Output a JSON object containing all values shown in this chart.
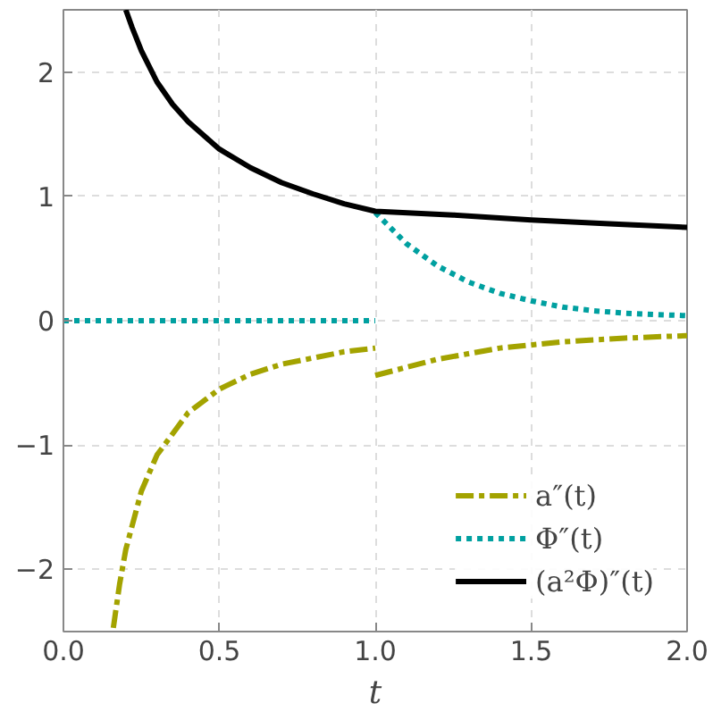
{
  "chart_data": {
    "type": "line",
    "xlabel": "t",
    "xlim": [
      0,
      2
    ],
    "ylim": [
      -2.5,
      2.5
    ],
    "xticks": [
      {
        "value": 0,
        "label": "0.0"
      },
      {
        "value": 0.5,
        "label": "0.5"
      },
      {
        "value": 1,
        "label": "1.0"
      },
      {
        "value": 1.5,
        "label": "1.5"
      },
      {
        "value": 2,
        "label": "2.0"
      }
    ],
    "yticks": [
      {
        "value": -2,
        "label": "−2"
      },
      {
        "value": -1,
        "label": "−1"
      },
      0,
      1,
      2
    ],
    "grid": true,
    "legend": "bottom right",
    "series": [
      {
        "name": "a″(t)",
        "color": "#a3a300",
        "line_style": "dashdot",
        "x": [
          0.16,
          0.18,
          0.2,
          0.25,
          0.3,
          0.4,
          0.5,
          0.6,
          0.7,
          0.8,
          0.9,
          1.0,
          null,
          1.0,
          1.2,
          1.4,
          1.6,
          1.8,
          2.0
        ],
        "values": [
          -2.47,
          -2.12,
          -1.84,
          -1.37,
          -1.08,
          -0.74,
          -0.55,
          -0.43,
          -0.35,
          -0.3,
          -0.25,
          -0.22,
          null,
          -0.44,
          -0.31,
          -0.22,
          -0.17,
          -0.14,
          -0.12
        ]
      },
      {
        "name": "Φ″(t)",
        "color": "#00a0a0",
        "line_style": "dotted",
        "x": [
          0,
          1,
          null,
          1.0,
          1.1,
          1.2,
          1.3,
          1.4,
          1.5,
          1.6,
          1.7,
          1.8,
          1.9,
          2.0
        ],
        "values": [
          0,
          0,
          null,
          0.87,
          0.62,
          0.44,
          0.31,
          0.22,
          0.16,
          0.11,
          0.08,
          0.06,
          0.05,
          0.04
        ]
      },
      {
        "name": "(a²Φ)″(t)",
        "color": "#000000",
        "line_style": "solid",
        "x": [
          0.2,
          0.22,
          0.25,
          0.3,
          0.35,
          0.4,
          0.5,
          0.6,
          0.7,
          0.8,
          0.9,
          1.0,
          1.25,
          1.5,
          1.75,
          2.0
        ],
        "values": [
          2.5,
          2.36,
          2.17,
          1.92,
          1.74,
          1.6,
          1.38,
          1.23,
          1.11,
          1.02,
          0.94,
          0.88,
          0.85,
          0.81,
          0.78,
          0.75
        ]
      }
    ]
  }
}
